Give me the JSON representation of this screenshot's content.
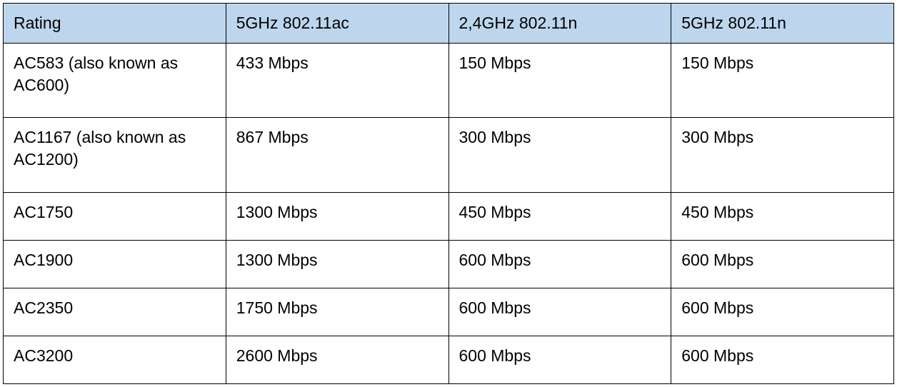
{
  "table": {
    "header_bg_color": "#bdd6ee",
    "border_color": "#000000",
    "background_color": "#ffffff",
    "text_color": "#000000",
    "font_size_pt": 17,
    "columns": [
      "Rating",
      "5GHz 802.11ac",
      "2,4GHz 802.11n",
      "5GHz 802.11n"
    ],
    "column_widths_pct": [
      25,
      25,
      25,
      25
    ],
    "rows": [
      [
        "AC583 (also known as AC600)",
        "433 Mbps",
        "150 Mbps",
        "150 Mbps"
      ],
      [
        "AC1167 (also known as AC1200)",
        "867 Mbps",
        "300 Mbps",
        "300 Mbps"
      ],
      [
        "AC1750",
        "1300 Mbps",
        "450 Mbps",
        "450 Mbps"
      ],
      [
        "AC1900",
        "1300 Mbps",
        "600 Mbps",
        "600 Mbps"
      ],
      [
        "AC2350",
        "1750 Mbps",
        "600 Mbps",
        "600 Mbps"
      ],
      [
        "AC3200",
        "2600 Mbps",
        "600 Mbps",
        "600 Mbps"
      ]
    ]
  }
}
